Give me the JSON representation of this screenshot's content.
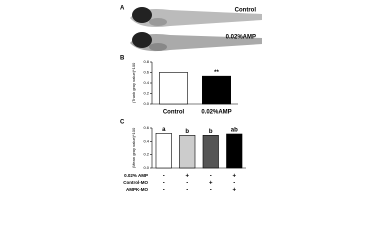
{
  "panel_a": {
    "label": "A",
    "captions": [
      "Control",
      "0.02%AMP"
    ]
  },
  "chart_data": [
    {
      "type": "bar",
      "panel_label": "B",
      "y_label": "(Trunk gray value)*100",
      "categories": [
        "Control",
        "0.02%AMP"
      ],
      "values": [
        0.6,
        0.53
      ],
      "colors": [
        "#ffffff",
        "#000000"
      ],
      "significance": [
        null,
        "**"
      ],
      "ylim": [
        0,
        0.8
      ],
      "yticks": [
        {
          "value": 0,
          "label": "0.0"
        },
        0.2,
        0.4,
        0.6,
        0.8
      ]
    },
    {
      "type": "bar",
      "panel_label": "C",
      "y_label": "(Mean gray value)*100",
      "categories": [
        null,
        null,
        null,
        null
      ],
      "values": [
        0.52,
        0.49,
        0.49,
        0.51
      ],
      "colors": [
        "#ffffff",
        "#cccccc",
        "#555555",
        "#000000"
      ],
      "significance": [
        "a",
        "b",
        "b",
        "ab"
      ],
      "ylim": [
        0,
        0.6
      ],
      "yticks": [
        {
          "value": 0,
          "label": "0.0"
        },
        0.2,
        0.4,
        0.6
      ],
      "conditions": [
        {
          "name": "0.02% AMP",
          "values": [
            "-",
            "+",
            "-",
            "+"
          ]
        },
        {
          "name": "Control-MO",
          "values": [
            "-",
            "-",
            "+",
            "-"
          ]
        },
        {
          "name": "AMPK-MO",
          "values": [
            "-",
            "-",
            "-",
            "+"
          ]
        }
      ]
    }
  ]
}
